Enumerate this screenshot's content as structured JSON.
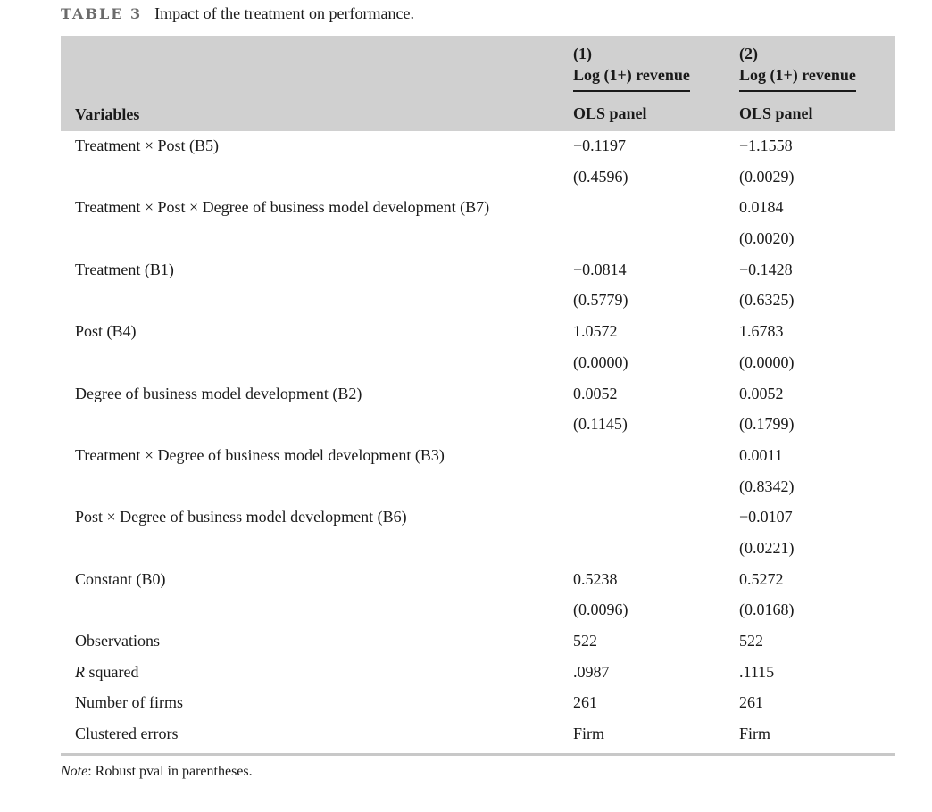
{
  "caption": {
    "label": "TABLE 3",
    "title": "Impact of the treatment on performance."
  },
  "header": {
    "variables_label": "Variables",
    "columns": [
      {
        "num": "(1)",
        "dep": "Log (1+) revenue",
        "method": "OLS panel"
      },
      {
        "num": "(2)",
        "dep": "Log (1+) revenue",
        "method": "OLS panel"
      }
    ]
  },
  "rows": [
    {
      "var": "Treatment × Post (B5)",
      "v1": "−0.1197",
      "v2": "−1.1558"
    },
    {
      "var": "",
      "v1": "(0.4596)",
      "v2": "(0.0029)"
    },
    {
      "var": "Treatment × Post × Degree of business model development (B7)",
      "v1": "",
      "v2": "0.0184"
    },
    {
      "var": "",
      "v1": "",
      "v2": "(0.0020)"
    },
    {
      "var": "Treatment (B1)",
      "v1": "−0.0814",
      "v2": "−0.1428"
    },
    {
      "var": "",
      "v1": "(0.5779)",
      "v2": "(0.6325)"
    },
    {
      "var": "Post (B4)",
      "v1": "1.0572",
      "v2": "1.6783"
    },
    {
      "var": "",
      "v1": "(0.0000)",
      "v2": "(0.0000)"
    },
    {
      "var": "Degree of business model development (B2)",
      "v1": "0.0052",
      "v2": "0.0052"
    },
    {
      "var": "",
      "v1": "(0.1145)",
      "v2": "(0.1799)"
    },
    {
      "var": "Treatment × Degree of business model development (B3)",
      "v1": "",
      "v2": "0.0011"
    },
    {
      "var": "",
      "v1": "",
      "v2": "(0.8342)"
    },
    {
      "var": "Post × Degree of business model development (B6)",
      "v1": "",
      "v2": "−0.0107"
    },
    {
      "var": "",
      "v1": "",
      "v2": "(0.0221)"
    },
    {
      "var": "Constant (B0)",
      "v1": "0.5238",
      "v2": "0.5272"
    },
    {
      "var": "",
      "v1": "(0.0096)",
      "v2": "(0.0168)"
    },
    {
      "var": "Observations",
      "v1": "522",
      "v2": "522"
    },
    {
      "var": "R squared",
      "v1": ".0987",
      "v2": ".1115"
    },
    {
      "var": "Number of firms",
      "v1": "261",
      "v2": "261"
    },
    {
      "var": "Clustered errors",
      "v1": "Firm",
      "v2": "Firm"
    }
  ],
  "note": {
    "label": "Note",
    "text": ": Robust pval in parentheses."
  }
}
